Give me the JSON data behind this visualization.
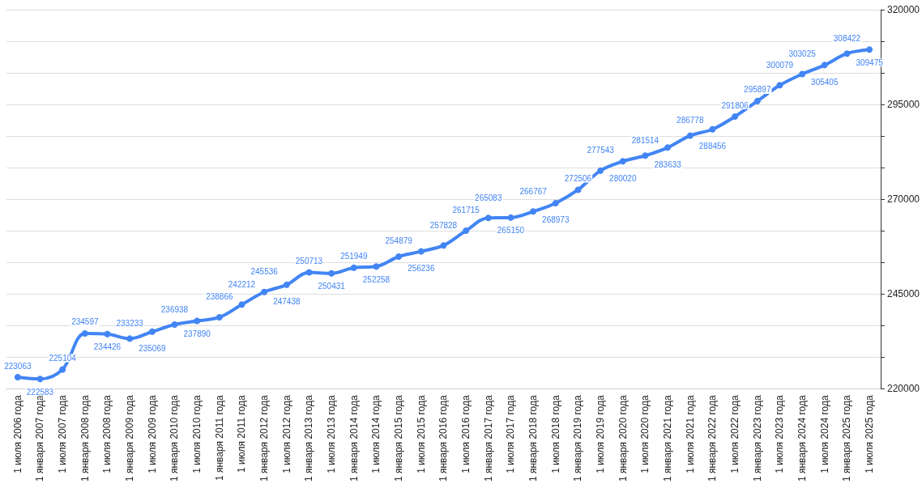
{
  "chart_data": {
    "type": "line",
    "categories": [
      "1 июля 2006 года",
      "1 января 2007 года",
      "1 июля 2007 года",
      "1 января 2008 года",
      "1 июля 2008 года",
      "1 января 2009 года",
      "1 июля 2009 года",
      "1 января 2010 года",
      "1 июля 2010 года",
      "1 января 2011 года",
      "1 июля 2011 года",
      "1 января 2012 года",
      "1 июля 2012 года",
      "1 января 2013 года",
      "1 июля 2013 года",
      "1 января 2014 года",
      "1 июля 2014 года",
      "1 января 2015 года",
      "1 июля 2015 года",
      "1 января 2016 года",
      "1 июля 2016 года",
      "1 января 2017 года",
      "1 июля 2017 года",
      "1 января 2018 года",
      "1 июля 2018 года",
      "1 января 2019 года",
      "1 июля 2019 года",
      "1 января 2020 года",
      "1 июля 2020 года",
      "1 января 2021 года",
      "1 июля 2021 года",
      "1 января 2022 года",
      "1 июля 2022 года",
      "1 января 2023 года",
      "1 июля 2023 года",
      "1 января 2024 года",
      "1 июля 2024 года",
      "1 января 2025 года",
      "1 июля 2025 года"
    ],
    "series": [
      {
        "color": "#4285f4",
        "values": [
          223063,
          222583,
          225104,
          234597,
          234426,
          233233,
          235069,
          236938,
          237890,
          238866,
          242212,
          245536,
          247438,
          250713,
          250431,
          251949,
          252258,
          254879,
          256236,
          257828,
          261715,
          265083,
          265150,
          266767,
          268973,
          272506,
          277543,
          280020,
          281514,
          283633,
          286778,
          288456,
          291806,
          295897,
          300079,
          303025,
          305405,
          308422,
          309475
        ]
      }
    ],
    "ylim": [
      220000,
      320000
    ],
    "yticks": [
      220000,
      {
        "value": 228333.33,
        "label": null
      },
      {
        "value": 236666.67,
        "label": null
      },
      245000,
      {
        "value": 253333.33,
        "label": null
      },
      {
        "value": 261666.67,
        "label": null
      },
      270000,
      {
        "value": 278333.33,
        "label": null
      },
      {
        "value": 286666.67,
        "label": null
      },
      295000,
      {
        "value": 303333.33,
        "label": null
      },
      {
        "value": 311666.67,
        "label": null
      },
      320000
    ],
    "grid": "y",
    "marker": "circle",
    "line_style": "solid",
    "data_labels": true
  }
}
